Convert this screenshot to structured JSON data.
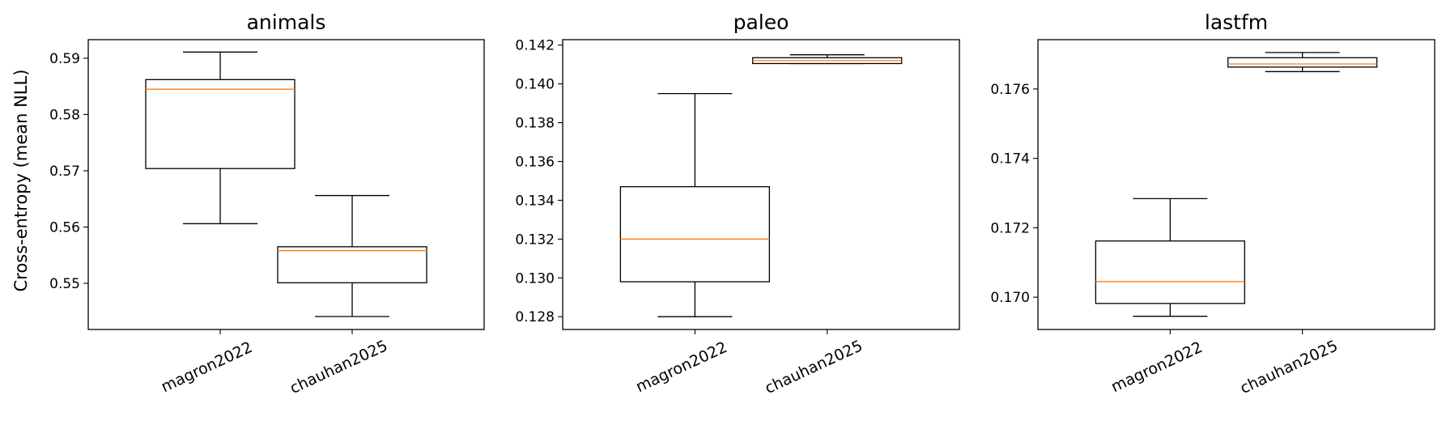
{
  "ylabel": "Cross-entropy (mean NLL)",
  "chart_data": [
    {
      "type": "box",
      "title": "animals",
      "categories": [
        "magron2022",
        "chauhan2025"
      ],
      "ylim": [
        0.5418,
        0.5933
      ],
      "yticks": [
        0.55,
        0.56,
        0.57,
        0.58,
        0.59
      ],
      "ytick_labels": [
        "0.55",
        "0.56",
        "0.57",
        "0.58",
        "0.59"
      ],
      "boxes": [
        {
          "whislo": 0.5606,
          "q1": 0.5704,
          "med": 0.5845,
          "q3": 0.5862,
          "whishi": 0.5911
        },
        {
          "whislo": 0.5441,
          "q1": 0.5501,
          "med": 0.5558,
          "q3": 0.5565,
          "whishi": 0.5656
        }
      ]
    },
    {
      "type": "box",
      "title": "paleo",
      "categories": [
        "magron2022",
        "chauhan2025"
      ],
      "ylim": [
        0.12734,
        0.14228
      ],
      "yticks": [
        0.128,
        0.13,
        0.132,
        0.134,
        0.136,
        0.138,
        0.14,
        0.142
      ],
      "ytick_labels": [
        "0.128",
        "0.130",
        "0.132",
        "0.134",
        "0.136",
        "0.138",
        "0.140",
        "0.142"
      ],
      "boxes": [
        {
          "whislo": 0.128,
          "q1": 0.1298,
          "med": 0.132,
          "q3": 0.1347,
          "whishi": 0.1395
        },
        {
          "whislo": 0.14105,
          "q1": 0.14105,
          "med": 0.1412,
          "q3": 0.14135,
          "whishi": 0.1415
        }
      ]
    },
    {
      "type": "box",
      "title": "lastfm",
      "categories": [
        "magron2022",
        "chauhan2025"
      ],
      "ylim": [
        0.16907,
        0.17742
      ],
      "yticks": [
        0.17,
        0.172,
        0.174,
        0.176
      ],
      "ytick_labels": [
        "0.170",
        "0.172",
        "0.174",
        "0.176"
      ],
      "boxes": [
        {
          "whislo": 0.16945,
          "q1": 0.16982,
          "med": 0.17045,
          "q3": 0.17162,
          "whishi": 0.17284
        },
        {
          "whislo": 0.1765,
          "q1": 0.17663,
          "med": 0.17672,
          "q3": 0.1769,
          "whishi": 0.17705
        }
      ]
    }
  ]
}
